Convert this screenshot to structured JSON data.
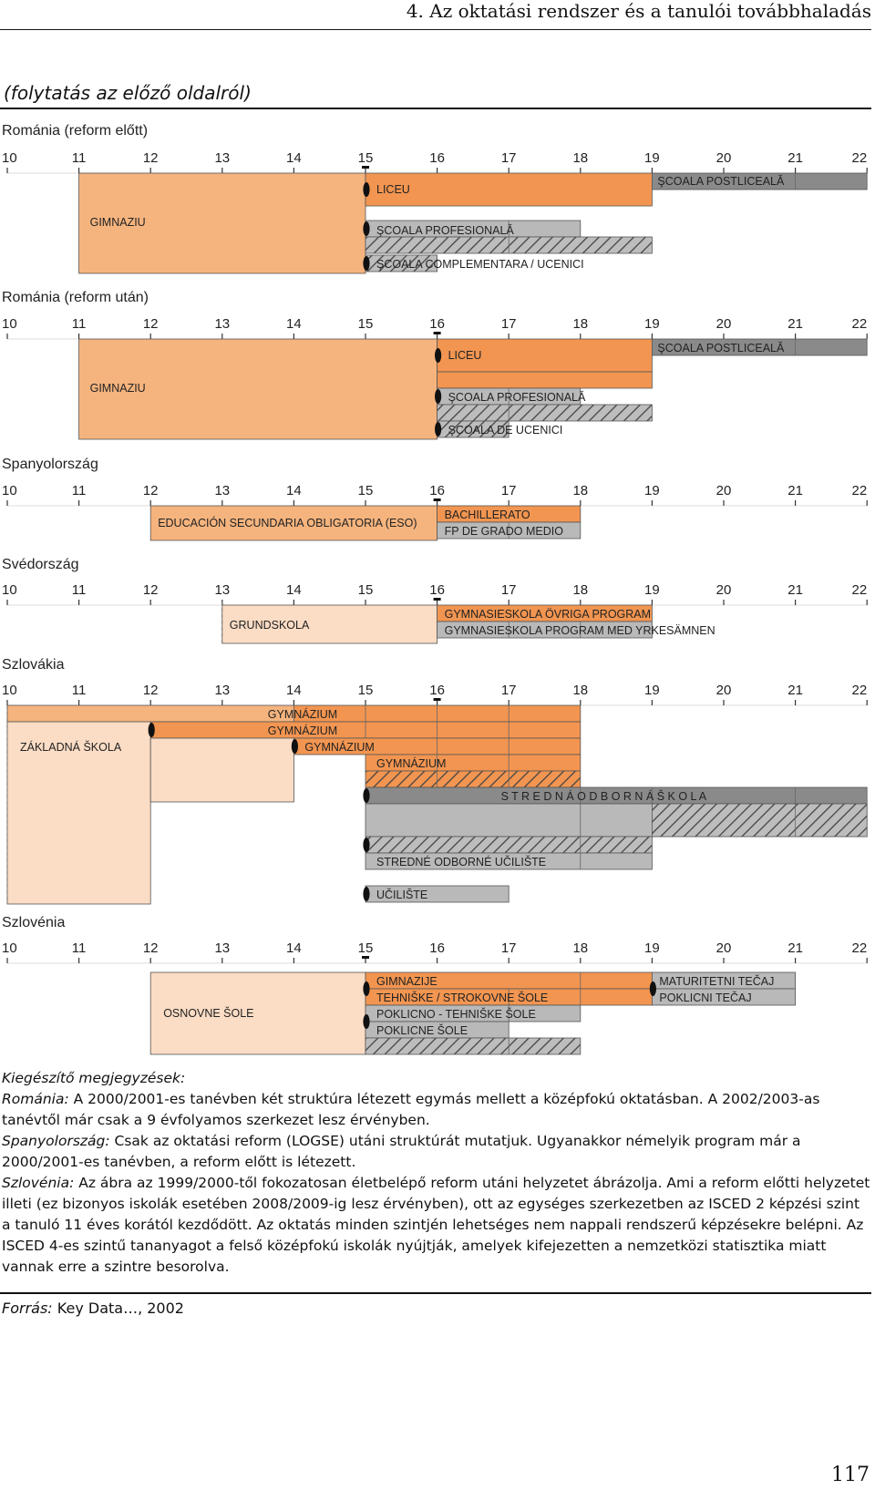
{
  "header": {
    "title": "4. Az oktatási rendszer és a tanulói továbbhaladás"
  },
  "continued": "(folytatás az előző oldalról)",
  "colors": {
    "orange": "#f29551",
    "peach": "#f5b47e",
    "lightpeach": "#fbdcc4",
    "grey": "#b9b9b9",
    "darkgrey": "#8a8a8a"
  },
  "ages": [
    "10",
    "11",
    "12",
    "13",
    "14",
    "15",
    "16",
    "17",
    "18",
    "19",
    "20",
    "21",
    "22"
  ],
  "sections": [
    {
      "title": "Románia (reform előtt)",
      "labels": [
        "GIMNAZIU",
        "LICEU",
        "ŞCOALA POSTLICEALĂ",
        "ŞCOALA PROFESIONALĂ",
        "ŞCOALA COMPLEMENTARA / UCENICI"
      ]
    },
    {
      "title": "Románia (reform után)",
      "labels": [
        "GIMNAZIU",
        "LICEU",
        "ŞCOALA POSTLICEALĂ",
        "ŞCOALA PROFESIONALĂ",
        "ŞCOALA DE UCENICI"
      ]
    },
    {
      "title": "Spanyolország",
      "labels": [
        "EDUCACIÓN SECUNDARIA OBLIGATORIA (ESO)",
        "BACHILLERATO",
        "FP DE GRADO MEDIO"
      ]
    },
    {
      "title": "Svédország",
      "labels": [
        "GRUNDSKOLA",
        "GYMNASIESKOLA ÖVRIGA PROGRAM",
        "GYMNASIESKOLA PROGRAM MED YRKESÄMNEN"
      ]
    },
    {
      "title": "Szlovákia",
      "labels": [
        "GYMNÁZIUM",
        "GYMNÁZIUM",
        "ZÁKLADNÁ ŠKOLA",
        "GYMNÁZIUM",
        "GYMNÁZIUM",
        "S T R E D N Á   O D B O R N Á  Š K O L A",
        "STREDNÉ ODBORNÉ UČILIŠTE",
        "UČILIŠTE"
      ]
    },
    {
      "title": "Szlovénia",
      "labels": [
        "GIMNAZIJE",
        "MATURITETNI TEČAJ",
        "TEHNIŠKE / STROKOVNE ŠOLE",
        "POKLICNI TEČAJ",
        "OSNOVNE ŠOLE",
        "POKLICNO - TEHNIŠKE ŠOLE",
        "POKLICNE ŠOLE"
      ]
    }
  ],
  "notes": {
    "heading": "Kiegészítő megjegyzések:",
    "romania_label": "Románia:",
    "romania_text": " A 2000/2001-es tanévben két struktúra létezett egymás mellett a középfokú oktatásban. A 2002/2003-as tanévtől már csak a 9 évfolyamos szerkezet lesz érvényben.",
    "spain_label": "Spanyolország:",
    "spain_text": " Csak az oktatási reform (LOGSE) utáni struktúrát mutatjuk. Ugyanakkor némelyik program már a 2000/2001-es tanévben, a reform előtt is létezett.",
    "slovenia_label": "Szlovénia:",
    "slovenia_text": " Az ábra az 1999/2000-től fokozatosan életbelépő reform utáni helyzetet ábrázolja. Ami a reform előtti helyzetet illeti (ez bizonyos iskolák esetében 2008/2009-ig lesz érvényben), ott az egységes szerkezetben az ISCED 2 képzési szint a tanuló 11 éves korától kezdődött. Az oktatás minden szintjén lehetséges nem nappali rendszerű képzésekre belépni. Az ISCED 4-es szintű tananyagot a felső középfokú iskolák nyújtják, amelyek kifejezetten a nemzetközi statisztika miatt vannak erre a szintre besorolva."
  },
  "source": {
    "label": "Forrás:",
    "text": " Key Data…, 2002"
  },
  "page_number": "117"
}
